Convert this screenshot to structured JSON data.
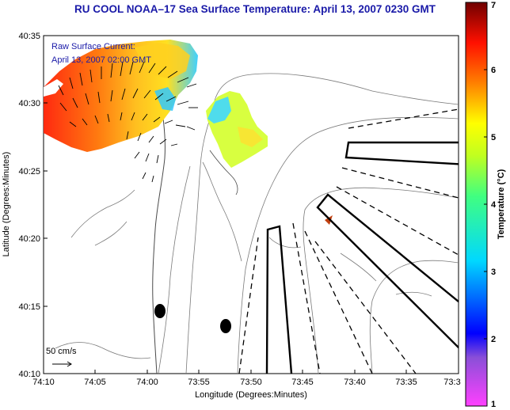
{
  "title": "RU COOL  NOAA–17  Sea Surface Temperature:  April 13, 2007 0230 GMT",
  "inset": {
    "line1": "Raw Surface Current:",
    "line2": "April 13, 2007 02:00 GMT"
  },
  "scale": {
    "label": "50 cm/s"
  },
  "axes": {
    "xlabel": "Longitude (Degrees:Minutes)",
    "ylabel": "Latitude (Degrees:Minutes)",
    "xticks": [
      "74:10",
      "74:05",
      "74:00",
      "73:55",
      "73:50",
      "73:45",
      "73:40",
      "73:35",
      "73:3"
    ],
    "yticks": [
      "40:35",
      "40:30",
      "40:25",
      "40:20",
      "40:15",
      "40:10"
    ]
  },
  "colorbar": {
    "label": "Temperature (°C)",
    "ticks": [
      "7",
      "6",
      "5",
      "4",
      "3",
      "2",
      "1"
    ],
    "min": 1,
    "max": 7
  }
}
